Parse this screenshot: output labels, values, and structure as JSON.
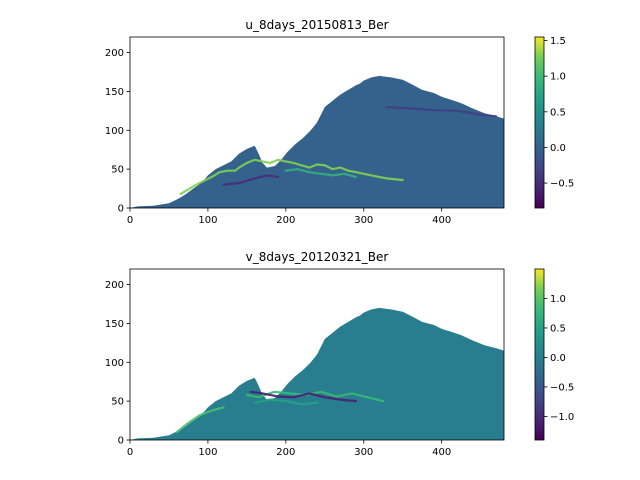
{
  "chart_data": [
    {
      "type": "heatmap",
      "title": "u_8days_20150813_Ber",
      "xlabel": "",
      "ylabel": "",
      "xlim": [
        0,
        480
      ],
      "ylim": [
        0,
        220
      ],
      "xticks": [
        0,
        100,
        200,
        300,
        400
      ],
      "yticks": [
        0,
        50,
        100,
        150,
        200
      ],
      "colorbar": {
        "min": -0.85,
        "max": 1.55,
        "ticks": [
          -0.5,
          0.0,
          0.5,
          1.0,
          1.5
        ],
        "tick_labels": [
          "−0.5",
          "0.0",
          "0.5",
          "1.0",
          "1.5"
        ]
      },
      "colormap": "viridis",
      "background_value": 0.0,
      "features": [
        {
          "kind": "jet",
          "points": [
            [
              65,
              18
            ],
            [
              85,
              30
            ],
            [
              105,
              40
            ],
            [
              115,
              46
            ],
            [
              125,
              48
            ],
            [
              135,
              48
            ],
            [
              140,
              52
            ],
            [
              150,
              58
            ],
            [
              160,
              62
            ],
            [
              170,
              60
            ],
            [
              180,
              58
            ],
            [
              190,
              62
            ],
            [
              200,
              60
            ],
            [
              210,
              58
            ],
            [
              220,
              55
            ],
            [
              230,
              52
            ],
            [
              240,
              56
            ],
            [
              250,
              55
            ],
            [
              260,
              50
            ],
            [
              270,
              52
            ],
            [
              280,
              48
            ],
            [
              290,
              46
            ],
            [
              300,
              44
            ],
            [
              310,
              42
            ],
            [
              330,
              38
            ],
            [
              350,
              36
            ]
          ],
          "value": 1.3
        },
        {
          "kind": "jet",
          "points": [
            [
              200,
              48
            ],
            [
              215,
              50
            ],
            [
              230,
              46
            ],
            [
              245,
              44
            ],
            [
              260,
              42
            ],
            [
              275,
              44
            ],
            [
              290,
              40
            ]
          ],
          "value": 0.9
        },
        {
          "kind": "jet",
          "points": [
            [
              120,
              30
            ],
            [
              140,
              32
            ],
            [
              160,
              38
            ],
            [
              175,
              42
            ],
            [
              190,
              40
            ]
          ],
          "value": -0.5
        },
        {
          "kind": "jet",
          "points": [
            [
              330,
              130
            ],
            [
              360,
              128
            ],
            [
              390,
              126
            ],
            [
              420,
              125
            ],
            [
              450,
              120
            ],
            [
              470,
              118
            ]
          ],
          "value": -0.35
        }
      ]
    },
    {
      "type": "heatmap",
      "title": "v_8days_20120321_Ber",
      "xlabel": "",
      "ylabel": "",
      "xlim": [
        0,
        480
      ],
      "ylim": [
        0,
        220
      ],
      "xticks": [
        0,
        100,
        200,
        300,
        400
      ],
      "yticks": [
        0,
        50,
        100,
        150,
        200
      ],
      "colorbar": {
        "min": -1.4,
        "max": 1.5,
        "ticks": [
          -1.0,
          -0.5,
          0.0,
          0.5,
          1.0
        ],
        "tick_labels": [
          "−1.0",
          "−0.5",
          "0.0",
          "0.5",
          "1.0"
        ]
      },
      "colormap": "viridis",
      "background_value": 0.0,
      "features": [
        {
          "kind": "jet",
          "points": [
            [
              60,
              10
            ],
            [
              75,
              22
            ],
            [
              90,
              32
            ],
            [
              105,
              38
            ],
            [
              120,
              42
            ]
          ],
          "value": 0.9
        },
        {
          "kind": "jet",
          "points": [
            [
              150,
              58
            ],
            [
              165,
              55
            ],
            [
              185,
              62
            ],
            [
              205,
              60
            ],
            [
              225,
              58
            ],
            [
              245,
              62
            ],
            [
              265,
              56
            ],
            [
              285,
              60
            ],
            [
              305,
              55
            ],
            [
              325,
              50
            ]
          ],
          "value": 0.8
        },
        {
          "kind": "jet",
          "points": [
            [
              155,
              62
            ],
            [
              170,
              60
            ],
            [
              190,
              56
            ],
            [
              210,
              55
            ],
            [
              230,
              60
            ],
            [
              250,
              55
            ],
            [
              270,
              52
            ],
            [
              290,
              50
            ]
          ],
          "value": -1.1
        },
        {
          "kind": "jet",
          "points": [
            [
              160,
              48
            ],
            [
              180,
              52
            ],
            [
              200,
              50
            ],
            [
              220,
              46
            ],
            [
              240,
              48
            ]
          ],
          "value": 0.5
        }
      ]
    }
  ]
}
